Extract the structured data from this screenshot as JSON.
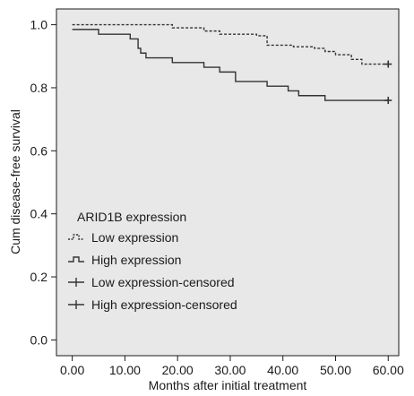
{
  "chart_data": {
    "type": "line",
    "title": "",
    "xlabel": "Months after initial treatment",
    "ylabel": "Cum disease-free survival",
    "xlim": [
      -3,
      62
    ],
    "ylim": [
      -0.05,
      1.05
    ],
    "xticks": [
      0,
      10,
      20,
      30,
      40,
      50,
      60
    ],
    "xtick_labels": [
      "0.00",
      "10.00",
      "20.00",
      "30.00",
      "40.00",
      "50.00",
      "60.00"
    ],
    "yticks": [
      0.0,
      0.2,
      0.4,
      0.6,
      0.8,
      1.0
    ],
    "ytick_labels": [
      "0.0",
      "0.2",
      "0.4",
      "0.6",
      "0.8",
      "1.0"
    ],
    "plot_background": "#e8e8e8",
    "line_color": "#333333",
    "legend": {
      "title": "ARID1B expression",
      "position": "lower-left",
      "entries": [
        {
          "label": "Low expression",
          "symbol": "dashed-step"
        },
        {
          "label": "High expression",
          "symbol": "solid-step"
        },
        {
          "label": "Low expression-censored",
          "symbol": "plus"
        },
        {
          "label": "High expression-censored",
          "symbol": "plus"
        }
      ]
    },
    "series": [
      {
        "name": "Low expression",
        "style": "dashed",
        "steps": [
          [
            0,
            1.0
          ],
          [
            19,
            0.99
          ],
          [
            25,
            0.98
          ],
          [
            28,
            0.97
          ],
          [
            35,
            0.965
          ],
          [
            37,
            0.935
          ],
          [
            42,
            0.93
          ],
          [
            46,
            0.925
          ],
          [
            48,
            0.915
          ],
          [
            50,
            0.905
          ],
          [
            53,
            0.89
          ],
          [
            55,
            0.875
          ],
          [
            60,
            0.875
          ]
        ],
        "censored": [
          [
            60,
            0.875
          ]
        ]
      },
      {
        "name": "High expression",
        "style": "solid",
        "steps": [
          [
            0,
            0.985
          ],
          [
            5,
            0.97
          ],
          [
            11,
            0.955
          ],
          [
            12.5,
            0.925
          ],
          [
            13,
            0.91
          ],
          [
            14,
            0.895
          ],
          [
            19,
            0.88
          ],
          [
            25,
            0.865
          ],
          [
            28,
            0.85
          ],
          [
            31,
            0.82
          ],
          [
            37,
            0.805
          ],
          [
            41,
            0.79
          ],
          [
            43,
            0.775
          ],
          [
            48,
            0.76
          ],
          [
            60,
            0.76
          ]
        ],
        "censored": [
          [
            60,
            0.76
          ]
        ]
      }
    ]
  }
}
